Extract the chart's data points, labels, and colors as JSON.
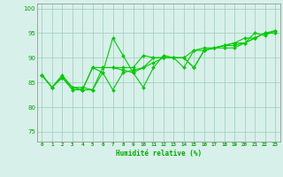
{
  "x": [
    0,
    1,
    2,
    3,
    4,
    5,
    6,
    7,
    8,
    9,
    10,
    11,
    12,
    13,
    14,
    15,
    16,
    17,
    18,
    19,
    20,
    21,
    22,
    23
  ],
  "series": [
    [
      86.5,
      84,
      86.5,
      84,
      83.5,
      88,
      87,
      94,
      90.5,
      87,
      84,
      88,
      90.5,
      90,
      90,
      88,
      91.5,
      92,
      92.5,
      92.5,
      93,
      94,
      95,
      95
    ],
    [
      86.5,
      84,
      86,
      83.5,
      83.5,
      83.5,
      87,
      83.5,
      87,
      87.5,
      88,
      89,
      90,
      90,
      88,
      91.5,
      92,
      92,
      92.5,
      93,
      93,
      95,
      94.5,
      95.5
    ],
    [
      86.5,
      84,
      86,
      84,
      83.5,
      88,
      88,
      88,
      88,
      88,
      90.5,
      90,
      90,
      90,
      90,
      88,
      91.5,
      92,
      92,
      92,
      93,
      94,
      95,
      95
    ],
    [
      86.5,
      84,
      86,
      84,
      84,
      83.5,
      88,
      88,
      87.5,
      87,
      88,
      90,
      90,
      90,
      90,
      91.5,
      91.5,
      92,
      92.5,
      93,
      94,
      94,
      95,
      95.5
    ]
  ],
  "line_color": "#00cc00",
  "marker_color": "#00cc00",
  "bg_color": "#d8f0ea",
  "grid_color": "#99ccbb",
  "axis_color": "#00aa00",
  "xlabel": "Humidité relative (%)",
  "xlim": [
    -0.5,
    23.5
  ],
  "ylim": [
    73,
    101
  ],
  "yticks": [
    75,
    80,
    85,
    90,
    95,
    100
  ],
  "xticks": [
    0,
    1,
    2,
    3,
    4,
    5,
    6,
    7,
    8,
    9,
    10,
    11,
    12,
    13,
    14,
    15,
    16,
    17,
    18,
    19,
    20,
    21,
    22,
    23
  ]
}
